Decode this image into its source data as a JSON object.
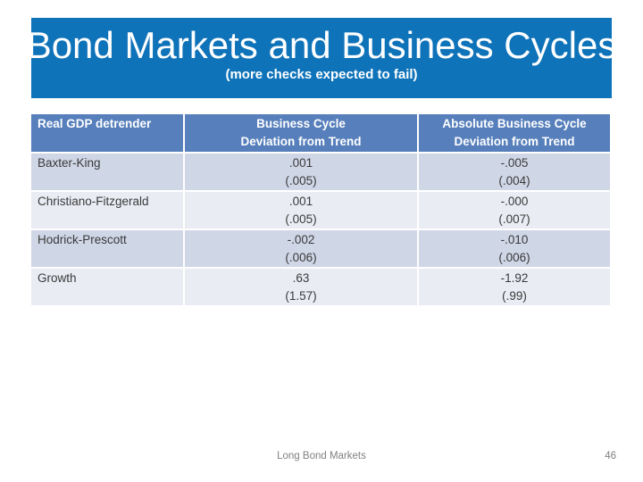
{
  "slide": {
    "title": "Bond Markets and Business Cycles",
    "subtitle": "(more checks expected to fail)"
  },
  "table": {
    "headers": {
      "col1": "Real GDP detrender",
      "col2_line1": "Business Cycle",
      "col2_line2": "Deviation from Trend",
      "col3_line1": "Absolute Business Cycle",
      "col3_line2": "Deviation from Trend"
    },
    "rows": [
      {
        "name": "Baxter-King",
        "bc_value": ".001",
        "bc_se": "(.005)",
        "abc_value": "-.005",
        "abc_se": "(.004)"
      },
      {
        "name": "Christiano-Fitzgerald",
        "bc_value": ".001",
        "bc_se": "(.005)",
        "abc_value": "-.000",
        "abc_se": "(.007)"
      },
      {
        "name": "Hodrick-Prescott",
        "bc_value": "-.002",
        "bc_se": "(.006)",
        "abc_value": "-.010",
        "abc_se": "(.006)"
      },
      {
        "name": "Growth",
        "bc_value": ".63",
        "bc_se": "(1.57)",
        "abc_value": "-1.92",
        "abc_se": "(.99)"
      }
    ]
  },
  "footer": {
    "label": "Long Bond Markets",
    "page_number": "46"
  },
  "colors": {
    "banner_blue": "#0f73b9",
    "table_header_blue": "#567fbb",
    "row_band_dark": "#cfd6e6",
    "row_band_light": "#e9ecf3",
    "footer_gray": "#818181"
  }
}
